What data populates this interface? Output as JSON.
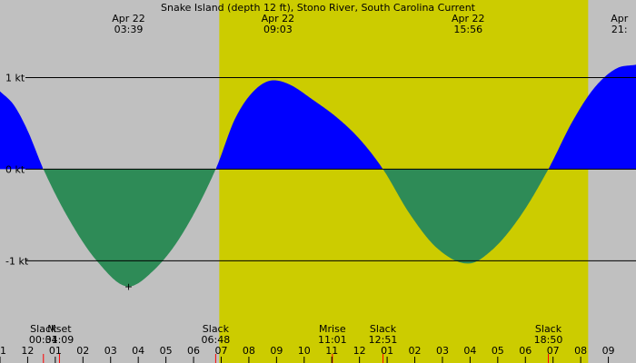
{
  "chart_data": {
    "type": "area",
    "title": "Snake Island (depth 12 ft), Stono River, South Carolina Current",
    "colors": {
      "background_night": "#c0c0c0",
      "background_day": "#cccc00",
      "flood": "#0000ff",
      "ebb": "#2e8b57",
      "axis_line": "#000000",
      "tick_red": "#ff0000"
    },
    "x_range_hours": [
      -1.0,
      22.0
    ],
    "ylim": [
      -1.6,
      1.45
    ],
    "daylight": {
      "start": 6.93,
      "end": 20.27
    },
    "y_ticks": [
      {
        "value": 1,
        "label": "1 kt"
      },
      {
        "value": 0,
        "label": "0 kt"
      },
      {
        "value": -1,
        "label": "-1 kt"
      }
    ],
    "top_events": [
      {
        "x": 3.65,
        "date": "Apr 22",
        "time": "03:39"
      },
      {
        "x": 9.05,
        "date": "Apr 22",
        "time": "09:03"
      },
      {
        "x": 15.93,
        "date": "Apr 22",
        "time": "15:56"
      },
      {
        "x": 21.4,
        "date": "Apr",
        "time": "21:"
      }
    ],
    "bottom_events": [
      {
        "x": 0.57,
        "label": "Slack",
        "time": "00:34"
      },
      {
        "x": 1.15,
        "label": "Mset",
        "time": "01:09"
      },
      {
        "x": 6.8,
        "label": "Slack",
        "time": "06:48"
      },
      {
        "x": 11.02,
        "label": "Mrise",
        "time": "11:01"
      },
      {
        "x": 12.85,
        "label": "Slack",
        "time": "12:51"
      },
      {
        "x": 18.83,
        "label": "Slack",
        "time": "18:50"
      }
    ],
    "hour_ticks": [
      {
        "x": -1,
        "label": "11"
      },
      {
        "x": 0,
        "label": "12"
      },
      {
        "x": 1,
        "label": "01"
      },
      {
        "x": 2,
        "label": "02"
      },
      {
        "x": 3,
        "label": "03"
      },
      {
        "x": 4,
        "label": "04"
      },
      {
        "x": 5,
        "label": "05"
      },
      {
        "x": 6,
        "label": "06"
      },
      {
        "x": 7,
        "label": "07"
      },
      {
        "x": 8,
        "label": "08"
      },
      {
        "x": 9,
        "label": "09"
      },
      {
        "x": 10,
        "label": "10"
      },
      {
        "x": 11,
        "label": "11"
      },
      {
        "x": 12,
        "label": "12"
      },
      {
        "x": 13,
        "label": "01"
      },
      {
        "x": 14,
        "label": "02"
      },
      {
        "x": 15,
        "label": "03"
      },
      {
        "x": 16,
        "label": "04"
      },
      {
        "x": 17,
        "label": "05"
      },
      {
        "x": 18,
        "label": "06"
      },
      {
        "x": 19,
        "label": "07"
      },
      {
        "x": 20,
        "label": "08"
      },
      {
        "x": 21,
        "label": "09"
      }
    ],
    "series": [
      {
        "x": [
          -1.0,
          -0.5,
          0.0,
          0.57,
          1.5,
          2.5,
          3.65,
          4.5,
          5.5,
          6.8,
          7.5,
          8.2,
          8.9,
          9.5,
          10.3,
          11.2,
          12.0,
          12.85,
          13.8,
          14.8,
          15.93,
          16.8,
          17.8,
          18.83,
          19.7,
          20.5,
          21.3,
          22.0
        ],
        "values": [
          0.85,
          0.7,
          0.42,
          0.0,
          -0.55,
          -1.0,
          -1.28,
          -1.12,
          -0.75,
          0.0,
          0.55,
          0.86,
          0.97,
          0.92,
          0.76,
          0.56,
          0.33,
          0.0,
          -0.48,
          -0.86,
          -1.03,
          -0.88,
          -0.52,
          0.0,
          0.52,
          0.89,
          1.1,
          1.14
        ]
      }
    ],
    "marker": {
      "x": 3.65,
      "y": -1.28,
      "symbol": "+"
    }
  }
}
